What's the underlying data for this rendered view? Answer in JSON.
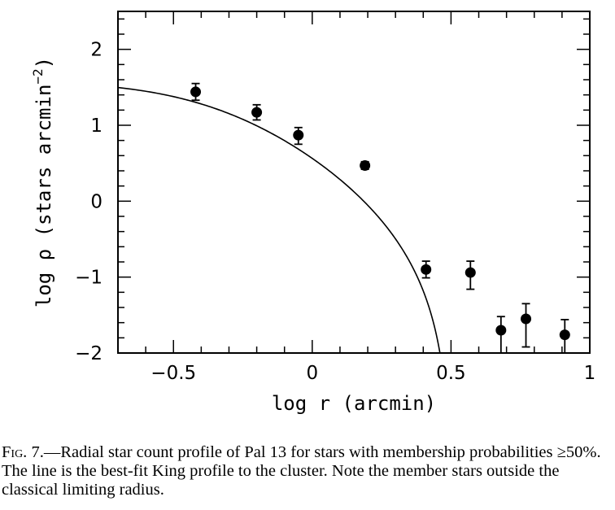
{
  "chart_data": {
    "type": "scatter",
    "xlabel": "log r (arcmin)",
    "ylabel_prefix": "log ρ (stars arcmin",
    "ylabel_exp": "−2",
    "ylabel_suffix": ")",
    "xlim": [
      -0.7,
      1.0
    ],
    "ylim": [
      -2.0,
      2.5
    ],
    "x_ticks": [
      {
        "value": -0.5,
        "label": "−0.5"
      },
      {
        "value": 0,
        "label": "0"
      },
      {
        "value": 0.5,
        "label": "0.5"
      },
      {
        "value": 1,
        "label": "1"
      }
    ],
    "y_ticks": [
      {
        "value": 2,
        "label": "2"
      },
      {
        "value": 1,
        "label": "1"
      },
      {
        "value": 0,
        "label": "0"
      },
      {
        "value": -1,
        "label": "−1"
      },
      {
        "value": -2,
        "label": "−2"
      }
    ],
    "points": [
      {
        "x": -0.42,
        "y": 1.44,
        "err_hi": 0.11,
        "err_lo": 0.11
      },
      {
        "x": -0.2,
        "y": 1.17,
        "err_hi": 0.1,
        "err_lo": 0.1
      },
      {
        "x": -0.05,
        "y": 0.87,
        "err_hi": 0.1,
        "err_lo": 0.12
      },
      {
        "x": 0.19,
        "y": 0.47,
        "err_hi": 0.05,
        "err_lo": 0.05
      },
      {
        "x": 0.41,
        "y": -0.9,
        "err_hi": 0.11,
        "err_lo": 0.11
      },
      {
        "x": 0.57,
        "y": -0.94,
        "err_hi": 0.15,
        "err_lo": 0.22
      },
      {
        "x": 0.68,
        "y": -1.7,
        "err_hi": 0.18,
        "err_lo": 0.3
      },
      {
        "x": 0.77,
        "y": -1.55,
        "err_hi": 0.2,
        "err_lo": 0.37
      },
      {
        "x": 0.91,
        "y": -1.76,
        "err_hi": 0.2,
        "err_lo": 0.24
      }
    ],
    "fit_line": {
      "model": "King profile",
      "log_k": 1.72,
      "log_rc": -0.36,
      "log_rt": 0.503
    }
  },
  "caption": {
    "fig_label": "Fig.",
    "fig_number": " 7.—",
    "text": "Radial star count profile of Pal 13 for stars with membership probabilities ≥50%. The line is the best-fit King profile to the cluster. Note the member stars outside the classical limiting radius."
  }
}
